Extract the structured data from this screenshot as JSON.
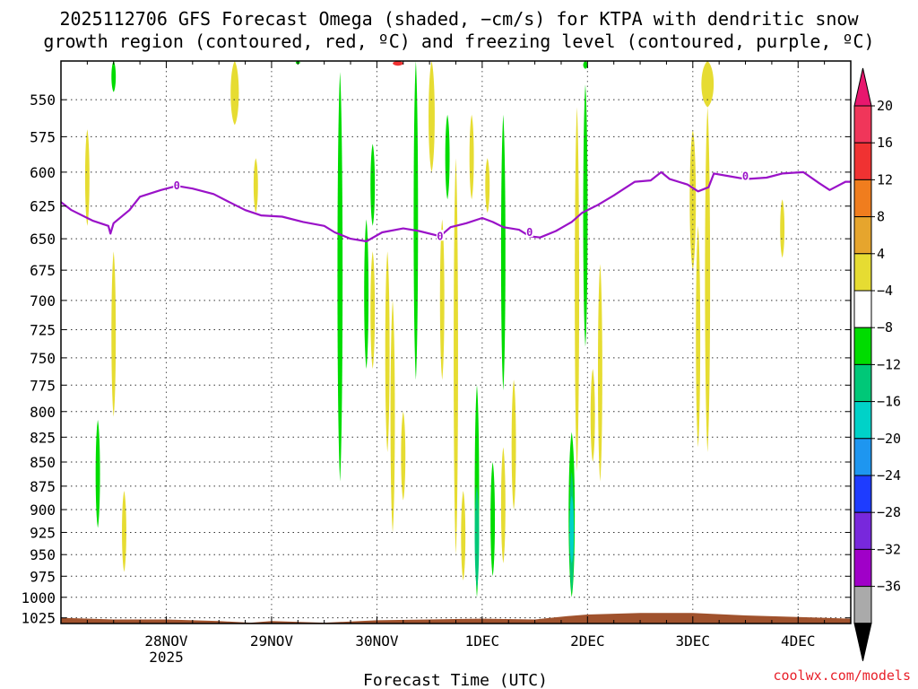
{
  "chart_data": {
    "type": "heatmap",
    "title_line1": "2025112706 GFS Forecast Omega (shaded, −cm/s) for KTPA with dendritic snow",
    "title_line2": "growth region (contoured, red, ºC) and freezing level (contoured, purple, ºC)",
    "xlabel": "Forecast Time (UTC)",
    "x_ticks": [
      {
        "label": "28NOV",
        "sublabel": "2025",
        "day": 1.0
      },
      {
        "label": "29NOV",
        "day": 2.0
      },
      {
        "label": "30NOV",
        "day": 3.0
      },
      {
        "label": "1DEC",
        "day": 4.0
      },
      {
        "label": "2DEC",
        "day": 5.0
      },
      {
        "label": "3DEC",
        "day": 6.0
      },
      {
        "label": "4DEC",
        "day": 7.0
      }
    ],
    "xlim": [
      0.0,
      7.5
    ],
    "y_ticks": [
      550,
      575,
      600,
      625,
      650,
      675,
      700,
      725,
      750,
      775,
      800,
      825,
      850,
      875,
      900,
      925,
      950,
      975,
      1000,
      1025
    ],
    "ylim": [
      525,
      1032
    ],
    "y_scale": "log-pressure",
    "grid": true,
    "colorbar": {
      "labels": [
        "20",
        "16",
        "12",
        "8",
        "4",
        "−4",
        "−8",
        "−12",
        "−16",
        "−20",
        "−24",
        "−28",
        "−32",
        "−36"
      ],
      "colors": [
        "#f0365a",
        "#f03232",
        "#f07d1e",
        "#e6a52d",
        "#e6dc32",
        "#ffffff",
        "#00dc00",
        "#00c878",
        "#00d2c8",
        "#1e96f0",
        "#1e3cff",
        "#7828dc",
        "#a000c8",
        "#aaaaaa"
      ],
      "top_arrow_color": "#e8176e",
      "bottom_arrow_color": "#000000"
    },
    "omega_regions": [
      {
        "day": 0.25,
        "p_top": 570,
        "p_bot": 640,
        "w": 0.03,
        "color": "#e6dc32"
      },
      {
        "day": 0.5,
        "p_top": 525,
        "p_bot": 545,
        "w": 0.01,
        "color": "#00dc00"
      },
      {
        "day": 0.5,
        "p_top": 660,
        "p_bot": 805,
        "w": 0.02,
        "color": "#e6dc32"
      },
      {
        "day": 0.35,
        "p_top": 808,
        "p_bot": 920,
        "w": 0.04,
        "color": "#00dc00"
      },
      {
        "day": 0.6,
        "p_top": 880,
        "p_bot": 970,
        "w": 0.015,
        "color": "#e6dc32"
      },
      {
        "day": 1.65,
        "p_top": 525,
        "p_bot": 567,
        "w": 0.08,
        "color": "#e6dc32"
      },
      {
        "day": 1.85,
        "p_top": 590,
        "p_bot": 630,
        "w": 0.012,
        "color": "#e6dc32"
      },
      {
        "day": 2.25,
        "p_top": 525,
        "p_bot": 527,
        "w": 0.015,
        "color": "#00dc00"
      },
      {
        "day": 2.65,
        "p_top": 532,
        "p_bot": 870,
        "w": 0.05,
        "color": "#00dc00"
      },
      {
        "day": 2.9,
        "p_top": 635,
        "p_bot": 760,
        "w": 0.04,
        "color": "#00dc00"
      },
      {
        "day": 2.96,
        "p_top": 580,
        "p_bot": 640,
        "w": 0.015,
        "color": "#00dc00"
      },
      {
        "day": 2.96,
        "p_top": 660,
        "p_bot": 760,
        "w": 0.012,
        "color": "#e6dc32"
      },
      {
        "day": 3.1,
        "p_top": 660,
        "p_bot": 840,
        "w": 0.02,
        "color": "#e6dc32"
      },
      {
        "day": 3.15,
        "p_top": 700,
        "p_bot": 925,
        "w": 0.04,
        "color": "#e6dc32"
      },
      {
        "day": 3.25,
        "p_top": 800,
        "p_bot": 890,
        "w": 0.015,
        "color": "#e6dc32"
      },
      {
        "day": 3.37,
        "p_top": 525,
        "p_bot": 770,
        "w": 0.035,
        "color": "#00dc00"
      },
      {
        "day": 3.52,
        "p_top": 525,
        "p_bot": 600,
        "w": 0.06,
        "color": "#e6dc32"
      },
      {
        "day": 3.62,
        "p_top": 635,
        "p_bot": 770,
        "w": 0.03,
        "color": "#e6dc32"
      },
      {
        "day": 3.67,
        "p_top": 560,
        "p_bot": 620,
        "w": 0.02,
        "color": "#00dc00"
      },
      {
        "day": 3.75,
        "p_top": 590,
        "p_bot": 950,
        "w": 0.025,
        "color": "#e6dc32"
      },
      {
        "day": 3.9,
        "p_top": 560,
        "p_bot": 620,
        "w": 0.012,
        "color": "#e6dc32"
      },
      {
        "day": 3.82,
        "p_top": 880,
        "p_bot": 980,
        "w": 0.03,
        "color": "#e6dc32"
      },
      {
        "day": 3.95,
        "p_top": 775,
        "p_bot": 1000,
        "w": 0.04,
        "color": "#00dc00"
      },
      {
        "day": 3.95,
        "p_top": 875,
        "p_bot": 990,
        "w": 0.03,
        "color": "#00c878"
      },
      {
        "day": 4.1,
        "p_top": 850,
        "p_bot": 975,
        "w": 0.03,
        "color": "#00dc00"
      },
      {
        "day": 4.05,
        "p_top": 590,
        "p_bot": 630,
        "w": 0.015,
        "color": "#e6dc32"
      },
      {
        "day": 4.2,
        "p_top": 560,
        "p_bot": 780,
        "w": 0.03,
        "color": "#00dc00"
      },
      {
        "day": 4.2,
        "p_top": 835,
        "p_bot": 960,
        "w": 0.03,
        "color": "#e6dc32"
      },
      {
        "day": 4.3,
        "p_top": 770,
        "p_bot": 900,
        "w": 0.035,
        "color": "#e6dc32"
      },
      {
        "day": 4.9,
        "p_top": 555,
        "p_bot": 860,
        "w": 0.035,
        "color": "#e6dc32"
      },
      {
        "day": 4.98,
        "p_top": 540,
        "p_bot": 740,
        "w": 0.035,
        "color": "#00dc00"
      },
      {
        "day": 4.85,
        "p_top": 820,
        "p_bot": 1000,
        "w": 0.06,
        "color": "#00dc00"
      },
      {
        "day": 4.85,
        "p_top": 860,
        "p_bot": 995,
        "w": 0.04,
        "color": "#00c878"
      },
      {
        "day": 4.85,
        "p_top": 885,
        "p_bot": 960,
        "w": 0.015,
        "color": "#00d2c8"
      },
      {
        "day": 5.05,
        "p_top": 760,
        "p_bot": 850,
        "w": 0.025,
        "color": "#e6dc32"
      },
      {
        "day": 5.12,
        "p_top": 670,
        "p_bot": 870,
        "w": 0.012,
        "color": "#e6dc32"
      },
      {
        "day": 4.98,
        "p_top": 525,
        "p_bot": 530,
        "w": 0.015,
        "color": "#00dc00"
      },
      {
        "day": 6.0,
        "p_top": 570,
        "p_bot": 675,
        "w": 0.06,
        "color": "#e6dc32"
      },
      {
        "day": 6.05,
        "p_top": 640,
        "p_bot": 835,
        "w": 0.03,
        "color": "#e6dc32"
      },
      {
        "day": 6.14,
        "p_top": 525,
        "p_bot": 555,
        "w": 0.12,
        "color": "#e6dc32"
      },
      {
        "day": 6.14,
        "p_top": 555,
        "p_bot": 840,
        "w": 0.05,
        "color": "#e6dc32"
      },
      {
        "day": 6.85,
        "p_top": 620,
        "p_bot": 665,
        "w": 0.04,
        "color": "#e6dc32"
      }
    ],
    "dgz_regions": [
      {
        "day": 3.2,
        "p_top": 525,
        "p_bot": 528,
        "w": 0.1,
        "color": "#f03232"
      }
    ],
    "freezing_level": {
      "name": "0",
      "points": [
        [
          0.0,
          622
        ],
        [
          0.1,
          628
        ],
        [
          0.3,
          636
        ],
        [
          0.45,
          640
        ],
        [
          0.47,
          646
        ],
        [
          0.5,
          638
        ],
        [
          0.65,
          628
        ],
        [
          0.75,
          618
        ],
        [
          0.95,
          613
        ],
        [
          1.1,
          610
        ],
        [
          1.25,
          612
        ],
        [
          1.45,
          616
        ],
        [
          1.6,
          622
        ],
        [
          1.75,
          628
        ],
        [
          1.9,
          632
        ],
        [
          2.1,
          633
        ],
        [
          2.3,
          637
        ],
        [
          2.5,
          640
        ],
        [
          2.6,
          645
        ],
        [
          2.75,
          650
        ],
        [
          2.9,
          652
        ],
        [
          3.05,
          645
        ],
        [
          3.25,
          642
        ],
        [
          3.4,
          644
        ],
        [
          3.6,
          648
        ],
        [
          3.7,
          641
        ],
        [
          3.85,
          638
        ],
        [
          4.0,
          634
        ],
        [
          4.1,
          637
        ],
        [
          4.2,
          641
        ],
        [
          4.35,
          643
        ],
        [
          4.45,
          648
        ],
        [
          4.55,
          649
        ],
        [
          4.7,
          644
        ],
        [
          4.85,
          637
        ],
        [
          4.95,
          630
        ],
        [
          5.1,
          624
        ],
        [
          5.25,
          617
        ],
        [
          5.35,
          612
        ],
        [
          5.45,
          607
        ],
        [
          5.6,
          606
        ],
        [
          5.7,
          600
        ],
        [
          5.78,
          605
        ],
        [
          5.95,
          609
        ],
        [
          6.05,
          614
        ],
        [
          6.15,
          611
        ],
        [
          6.2,
          601
        ],
        [
          6.35,
          603
        ],
        [
          6.5,
          605
        ],
        [
          6.7,
          604
        ],
        [
          6.85,
          601
        ],
        [
          7.05,
          600
        ],
        [
          7.2,
          608
        ],
        [
          7.3,
          613
        ],
        [
          7.45,
          607
        ],
        [
          7.5,
          607
        ]
      ]
    },
    "terrain": {
      "color": "#a0522d",
      "points": [
        [
          0.0,
          1025
        ],
        [
          0.5,
          1027
        ],
        [
          1.0,
          1027
        ],
        [
          1.5,
          1029
        ],
        [
          1.8,
          1031
        ],
        [
          2.0,
          1029
        ],
        [
          2.5,
          1031
        ],
        [
          3.0,
          1028
        ],
        [
          3.5,
          1027
        ],
        [
          4.0,
          1026
        ],
        [
          4.5,
          1027
        ],
        [
          4.8,
          1023
        ],
        [
          5.0,
          1021
        ],
        [
          5.5,
          1019
        ],
        [
          6.0,
          1019
        ],
        [
          6.5,
          1022
        ],
        [
          7.0,
          1024
        ],
        [
          7.5,
          1026
        ]
      ]
    },
    "credit": "coolwx.com/models"
  }
}
